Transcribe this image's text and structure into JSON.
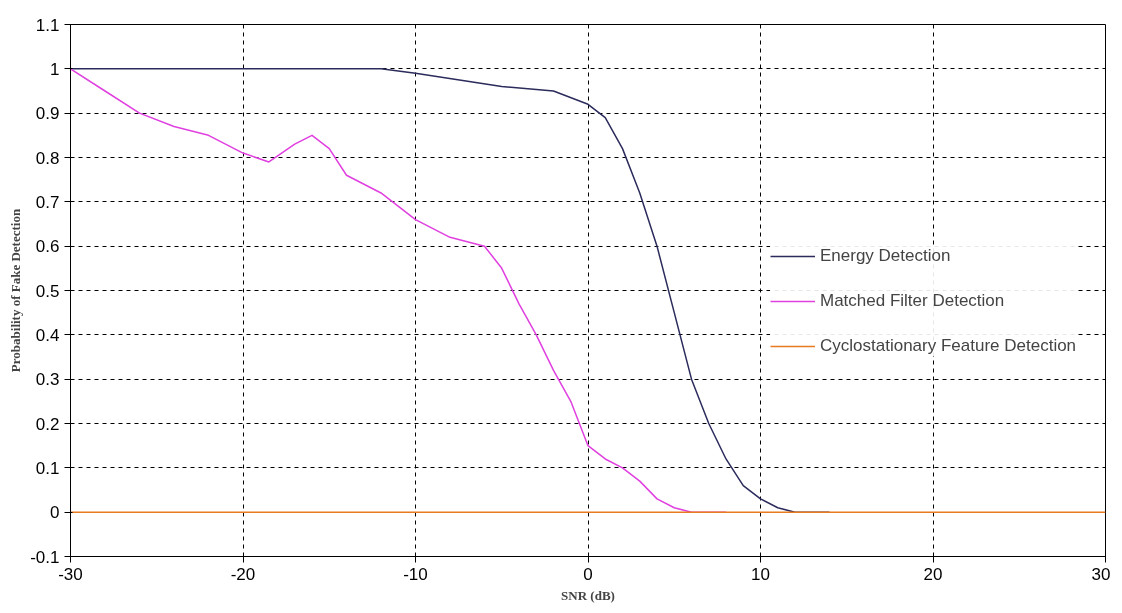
{
  "chart_data": {
    "type": "line",
    "xlabel": "SNR (dB)",
    "ylabel": "Probability of Fake Detection",
    "xlim": [
      -30,
      30
    ],
    "xticks": [
      -30,
      -20,
      -10,
      0,
      10,
      20,
      30
    ],
    "ylim": [
      -0.1,
      1.1
    ],
    "yticks": [
      -0.1,
      0,
      0.1,
      0.2,
      0.3,
      0.4,
      0.5,
      0.6,
      0.7,
      0.8,
      0.9,
      1,
      1.1
    ],
    "grid": true,
    "legend": "right",
    "marker": "none",
    "line_style": "solid",
    "series": [
      {
        "name": "Energy Detection",
        "color": "#2b2b5c",
        "x": [
          -30,
          -12,
          -10,
          -5,
          -2,
          0,
          1,
          2,
          3,
          4,
          5,
          6,
          7,
          8,
          9,
          10,
          11,
          12,
          14
        ],
        "values": [
          1,
          1,
          0.99,
          0.96,
          0.95,
          0.92,
          0.89,
          0.82,
          0.72,
          0.6,
          0.45,
          0.3,
          0.2,
          0.12,
          0.06,
          0.03,
          0.01,
          0,
          0
        ]
      },
      {
        "name": "Matched Filter Detection",
        "color": "#e040e0",
        "x": [
          -30,
          -28,
          -26,
          -24,
          -22,
          -20,
          -18.5,
          -17,
          -16,
          -15,
          -14,
          -12,
          -10,
          -8,
          -6,
          -5,
          -4,
          -3,
          -2,
          -1,
          0,
          1,
          2,
          3,
          4,
          5,
          6,
          8
        ],
        "values": [
          1,
          0.95,
          0.9,
          0.87,
          0.85,
          0.81,
          0.79,
          0.83,
          0.85,
          0.82,
          0.76,
          0.72,
          0.66,
          0.62,
          0.6,
          0.55,
          0.47,
          0.4,
          0.32,
          0.25,
          0.15,
          0.12,
          0.1,
          0.07,
          0.03,
          0.01,
          0,
          0
        ]
      },
      {
        "name": "Cyclostationary Feature Detection",
        "color": "#e87a20",
        "x": [
          -30,
          30
        ],
        "values": [
          0,
          0
        ]
      }
    ]
  }
}
